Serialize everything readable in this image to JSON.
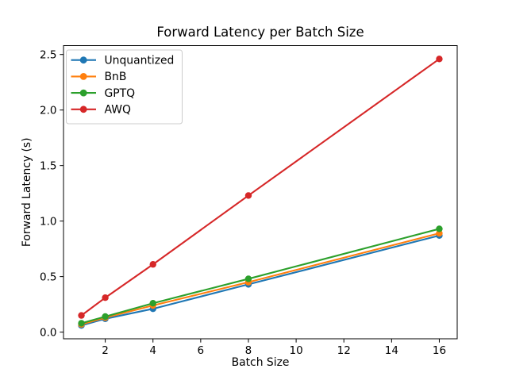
{
  "figure": {
    "background": "#ffffff",
    "frame_color": "#000000",
    "legend_border_color": "#cccccc",
    "legend_background": "#ffffff"
  },
  "chart_data": {
    "type": "line",
    "title": "Forward Latency per Batch Size",
    "xlabel": "Batch Size",
    "ylabel": "Forward Latency (s)",
    "x": [
      1,
      2,
      4,
      8,
      16
    ],
    "series": [
      {
        "name": "Unquantized",
        "color": "#1f77b4",
        "values": [
          0.06,
          0.12,
          0.21,
          0.43,
          0.87
        ]
      },
      {
        "name": "BnB",
        "color": "#ff7f0e",
        "values": [
          0.07,
          0.13,
          0.24,
          0.45,
          0.89
        ]
      },
      {
        "name": "GPTQ",
        "color": "#2ca02c",
        "values": [
          0.08,
          0.14,
          0.26,
          0.48,
          0.93
        ]
      },
      {
        "name": "AWQ",
        "color": "#d62728",
        "values": [
          0.15,
          0.31,
          0.61,
          1.23,
          2.46
        ]
      }
    ],
    "xticks": [
      2,
      4,
      6,
      8,
      10,
      12,
      14,
      16
    ],
    "yticks": [
      0.0,
      0.5,
      1.0,
      1.5,
      2.0,
      2.5
    ],
    "xlim": [
      0.25,
      16.75
    ],
    "ylim": [
      -0.06,
      2.58
    ],
    "grid": false,
    "marker": "o",
    "legend": {
      "position": "upper left",
      "entries": [
        "Unquantized",
        "BnB",
        "GPTQ",
        "AWQ"
      ]
    }
  }
}
